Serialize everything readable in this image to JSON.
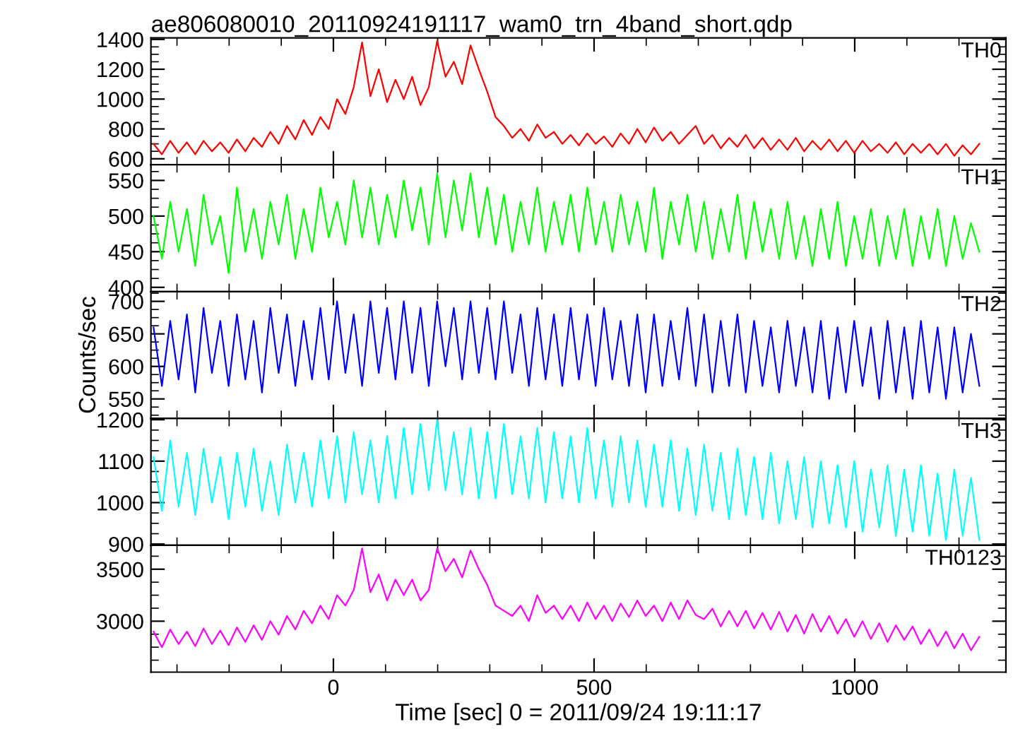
{
  "chart_data": [
    {
      "type": "line",
      "title": "ae806080010_20110924191117_wam0_trn_4band_short.qdp",
      "xlim": [
        -350,
        1290
      ],
      "xticks": [
        0,
        500,
        1000
      ],
      "ylim": [
        560,
        1410
      ],
      "yticks": [
        600,
        800,
        1000,
        1200,
        1400
      ],
      "tick_labels": "y",
      "x": [
        -345,
        -329,
        -313,
        -297,
        -281,
        -265,
        -249,
        -233,
        -217,
        -201,
        -185,
        -169,
        -153,
        -137,
        -121,
        -105,
        -89,
        -73,
        -57,
        -41,
        -25,
        -9,
        7,
        23,
        39,
        55,
        71,
        87,
        103,
        119,
        135,
        151,
        167,
        183,
        199,
        215,
        231,
        247,
        263,
        279,
        295,
        311,
        327,
        343,
        359,
        375,
        391,
        407,
        423,
        439,
        455,
        471,
        487,
        503,
        519,
        535,
        551,
        567,
        583,
        599,
        615,
        631,
        647,
        663,
        679,
        695,
        711,
        727,
        743,
        759,
        775,
        791,
        807,
        823,
        839,
        855,
        871,
        887,
        903,
        919,
        935,
        951,
        967,
        983,
        999,
        1015,
        1031,
        1047,
        1063,
        1079,
        1095,
        1111,
        1127,
        1143,
        1159,
        1175,
        1191,
        1207,
        1223,
        1239
      ],
      "series": [
        {
          "name": "TH0",
          "color": "#ff0000",
          "values": [
            700,
            630,
            720,
            640,
            710,
            630,
            720,
            650,
            710,
            640,
            730,
            650,
            740,
            680,
            780,
            700,
            820,
            730,
            860,
            760,
            880,
            800,
            1000,
            900,
            1080,
            1380,
            1020,
            1200,
            980,
            1130,
            1000,
            1150,
            960,
            1080,
            1390,
            1150,
            1250,
            1100,
            1360,
            1200,
            1050,
            880,
            820,
            740,
            800,
            720,
            830,
            740,
            780,
            700,
            760,
            690,
            770,
            700,
            750,
            680,
            770,
            700,
            800,
            710,
            810,
            720,
            780,
            700,
            760,
            820,
            700,
            760,
            670,
            740,
            680,
            760,
            670,
            740,
            660,
            730,
            660,
            740,
            650,
            720,
            660,
            730,
            650,
            720,
            640,
            720,
            650,
            700,
            640,
            710,
            630,
            700,
            640,
            700,
            630,
            700,
            620,
            690,
            630,
            700
          ]
        }
      ]
    },
    {
      "type": "line",
      "xlim": [
        -350,
        1290
      ],
      "xticks": [
        0,
        500,
        1000
      ],
      "ylim": [
        394,
        572
      ],
      "yticks": [
        400,
        450,
        500,
        550
      ],
      "tick_labels": "y",
      "x": [
        -345,
        -329,
        -313,
        -297,
        -281,
        -265,
        -249,
        -233,
        -217,
        -201,
        -185,
        -169,
        -153,
        -137,
        -121,
        -105,
        -89,
        -73,
        -57,
        -41,
        -25,
        -9,
        7,
        23,
        39,
        55,
        71,
        87,
        103,
        119,
        135,
        151,
        167,
        183,
        199,
        215,
        231,
        247,
        263,
        279,
        295,
        311,
        327,
        343,
        359,
        375,
        391,
        407,
        423,
        439,
        455,
        471,
        487,
        503,
        519,
        535,
        551,
        567,
        583,
        599,
        615,
        631,
        647,
        663,
        679,
        695,
        711,
        727,
        743,
        759,
        775,
        791,
        807,
        823,
        839,
        855,
        871,
        887,
        903,
        919,
        935,
        951,
        967,
        983,
        999,
        1015,
        1031,
        1047,
        1063,
        1079,
        1095,
        1111,
        1127,
        1143,
        1159,
        1175,
        1191,
        1207,
        1223,
        1239
      ],
      "series": [
        {
          "name": "TH1",
          "color": "#00ff00",
          "values": [
            500,
            440,
            520,
            450,
            510,
            430,
            530,
            460,
            500,
            420,
            540,
            450,
            510,
            440,
            520,
            460,
            530,
            440,
            510,
            450,
            540,
            470,
            520,
            460,
            550,
            470,
            540,
            460,
            530,
            470,
            550,
            480,
            540,
            460,
            560,
            470,
            550,
            480,
            560,
            470,
            540,
            460,
            530,
            450,
            520,
            460,
            540,
            450,
            520,
            460,
            530,
            450,
            540,
            460,
            520,
            450,
            530,
            460,
            520,
            450,
            540,
            440,
            520,
            460,
            530,
            450,
            520,
            440,
            510,
            450,
            530,
            440,
            520,
            450,
            510,
            440,
            520,
            440,
            500,
            430,
            510,
            440,
            520,
            430,
            500,
            440,
            510,
            430,
            500,
            440,
            510,
            430,
            500,
            440,
            510,
            430,
            500,
            440,
            490,
            450
          ]
        }
      ]
    },
    {
      "type": "line",
      "ylabel": "Counts/sec",
      "xlim": [
        -350,
        1290
      ],
      "xticks": [
        0,
        500,
        1000
      ],
      "ylim": [
        520,
        715
      ],
      "yticks": [
        550,
        600,
        650,
        700
      ],
      "tick_labels": "y",
      "x": [
        -345,
        -329,
        -313,
        -297,
        -281,
        -265,
        -249,
        -233,
        -217,
        -201,
        -185,
        -169,
        -153,
        -137,
        -121,
        -105,
        -89,
        -73,
        -57,
        -41,
        -25,
        -9,
        7,
        23,
        39,
        55,
        71,
        87,
        103,
        119,
        135,
        151,
        167,
        183,
        199,
        215,
        231,
        247,
        263,
        279,
        295,
        311,
        327,
        343,
        359,
        375,
        391,
        407,
        423,
        439,
        455,
        471,
        487,
        503,
        519,
        535,
        551,
        567,
        583,
        599,
        615,
        631,
        647,
        663,
        679,
        695,
        711,
        727,
        743,
        759,
        775,
        791,
        807,
        823,
        839,
        855,
        871,
        887,
        903,
        919,
        935,
        951,
        967,
        983,
        999,
        1015,
        1031,
        1047,
        1063,
        1079,
        1095,
        1111,
        1127,
        1143,
        1159,
        1175,
        1191,
        1207,
        1223,
        1239
      ],
      "series": [
        {
          "name": "TH2",
          "color": "#0000ff",
          "values": [
            660,
            570,
            670,
            580,
            680,
            560,
            690,
            590,
            670,
            570,
            680,
            580,
            670,
            560,
            690,
            590,
            680,
            570,
            670,
            580,
            690,
            580,
            700,
            590,
            680,
            570,
            700,
            590,
            690,
            580,
            700,
            590,
            690,
            570,
            700,
            600,
            690,
            580,
            700,
            590,
            690,
            580,
            700,
            590,
            680,
            570,
            690,
            580,
            680,
            570,
            690,
            580,
            680,
            570,
            690,
            580,
            670,
            570,
            680,
            560,
            680,
            570,
            670,
            580,
            690,
            570,
            680,
            560,
            670,
            570,
            680,
            560,
            670,
            570,
            660,
            560,
            670,
            570,
            660,
            560,
            670,
            550,
            660,
            560,
            670,
            570,
            660,
            550,
            670,
            560,
            660,
            550,
            670,
            560,
            660,
            550,
            660,
            560,
            650,
            570
          ]
        }
      ]
    },
    {
      "type": "line",
      "xlim": [
        -350,
        1290
      ],
      "xticks": [
        0,
        500,
        1000
      ],
      "ylim": [
        897,
        1203
      ],
      "yticks": [
        900,
        1000,
        1100,
        1200
      ],
      "tick_labels": "y",
      "x": [
        -345,
        -329,
        -313,
        -297,
        -281,
        -265,
        -249,
        -233,
        -217,
        -201,
        -185,
        -169,
        -153,
        -137,
        -121,
        -105,
        -89,
        -73,
        -57,
        -41,
        -25,
        -9,
        7,
        23,
        39,
        55,
        71,
        87,
        103,
        119,
        135,
        151,
        167,
        183,
        199,
        215,
        231,
        247,
        263,
        279,
        295,
        311,
        327,
        343,
        359,
        375,
        391,
        407,
        423,
        439,
        455,
        471,
        487,
        503,
        519,
        535,
        551,
        567,
        583,
        599,
        615,
        631,
        647,
        663,
        679,
        695,
        711,
        727,
        743,
        759,
        775,
        791,
        807,
        823,
        839,
        855,
        871,
        887,
        903,
        919,
        935,
        951,
        967,
        983,
        999,
        1015,
        1031,
        1047,
        1063,
        1079,
        1095,
        1111,
        1127,
        1143,
        1159,
        1175,
        1191,
        1207,
        1223,
        1239
      ],
      "series": [
        {
          "name": "TH3",
          "color": "#00ffff",
          "values": [
            1110,
            980,
            1150,
            990,
            1120,
            970,
            1130,
            1000,
            1110,
            960,
            1120,
            990,
            1130,
            980,
            1100,
            970,
            1140,
            1000,
            1120,
            990,
            1150,
            1010,
            1160,
            1000,
            1170,
            1020,
            1150,
            1000,
            1160,
            1010,
            1180,
            1020,
            1190,
            1030,
            1200,
            1030,
            1170,
            1020,
            1180,
            1010,
            1170,
            1010,
            1190,
            1020,
            1160,
            1010,
            1180,
            1000,
            1170,
            1010,
            1160,
            1000,
            1180,
            1010,
            1150,
            990,
            1160,
            1000,
            1150,
            990,
            1140,
            990,
            1150,
            980,
            1130,
            970,
            1140,
            980,
            1120,
            960,
            1130,
            970,
            1110,
            960,
            1120,
            950,
            1100,
            960,
            1110,
            940,
            1100,
            950,
            1090,
            940,
            1100,
            930,
            1080,
            940,
            1090,
            920,
            1080,
            930,
            1090,
            920,
            1070,
            910,
            1080,
            920,
            1060,
            910
          ]
        }
      ]
    },
    {
      "type": "line",
      "xlabel": "Time [sec] 0 = 2011/09/24 19:11:17",
      "xlim": [
        -350,
        1290
      ],
      "xticks": [
        0,
        500,
        1000
      ],
      "ylim": [
        2510,
        3730
      ],
      "yticks": [
        3000,
        3500
      ],
      "x": [
        -345,
        -329,
        -313,
        -297,
        -281,
        -265,
        -249,
        -233,
        -217,
        -201,
        -185,
        -169,
        -153,
        -137,
        -121,
        -105,
        -89,
        -73,
        -57,
        -41,
        -25,
        -9,
        7,
        23,
        39,
        55,
        71,
        87,
        103,
        119,
        135,
        151,
        167,
        183,
        199,
        215,
        231,
        247,
        263,
        279,
        295,
        311,
        327,
        343,
        359,
        375,
        391,
        407,
        423,
        439,
        455,
        471,
        487,
        503,
        519,
        535,
        551,
        567,
        583,
        599,
        615,
        631,
        647,
        663,
        679,
        695,
        711,
        727,
        743,
        759,
        775,
        791,
        807,
        823,
        839,
        855,
        871,
        887,
        903,
        919,
        935,
        951,
        967,
        983,
        999,
        1015,
        1031,
        1047,
        1063,
        1079,
        1095,
        1111,
        1127,
        1143,
        1159,
        1175,
        1191,
        1207,
        1223,
        1239
      ],
      "series": [
        {
          "name": "TH0123",
          "color": "#ff00ff",
          "values": [
            2900,
            2750,
            2920,
            2780,
            2900,
            2760,
            2930,
            2780,
            2910,
            2770,
            2940,
            2800,
            2960,
            2820,
            3000,
            2870,
            3050,
            2920,
            3100,
            2980,
            3150,
            3020,
            3250,
            3150,
            3300,
            3700,
            3280,
            3450,
            3200,
            3400,
            3250,
            3400,
            3200,
            3300,
            3700,
            3480,
            3600,
            3420,
            3680,
            3500,
            3350,
            3150,
            3100,
            3050,
            3150,
            3000,
            3250,
            3080,
            3150,
            3020,
            3150,
            3000,
            3180,
            3020,
            3150,
            3000,
            3170,
            3040,
            3200,
            3050,
            3150,
            3000,
            3180,
            3020,
            3200,
            3060,
            3020,
            3120,
            2950,
            3100,
            2950,
            3100,
            2930,
            3080,
            2920,
            3090,
            2900,
            3060,
            2880,
            3070,
            2900,
            3050,
            2880,
            3020,
            2850,
            3000,
            2830,
            2980,
            2800,
            2960,
            2820,
            2950,
            2780,
            2920,
            2760,
            2900,
            2740,
            2880,
            2720,
            2850
          ]
        }
      ]
    }
  ]
}
